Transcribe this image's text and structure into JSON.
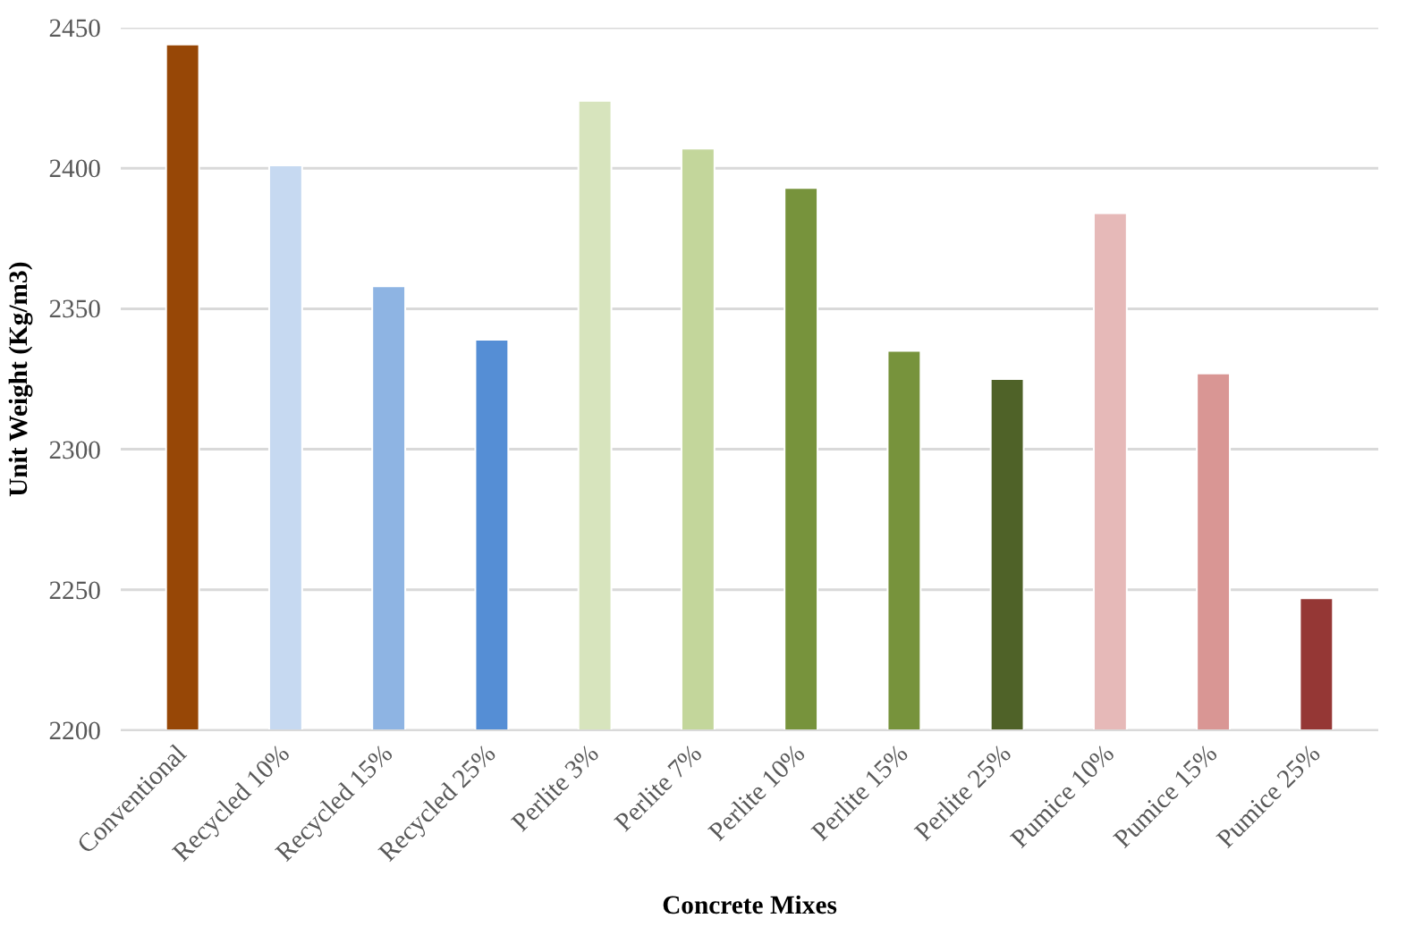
{
  "chart_data": {
    "type": "bar",
    "xlabel": "Concrete Mixes",
    "ylabel": "Unit Weight (Kg/m3)",
    "categories": [
      "Conventional",
      "Recycled 10%",
      "Recycled 15%",
      "Recycled 25%",
      "Perlite 3%",
      "Perlite 7%",
      "Perlite 10%",
      "Perlite 15%",
      "Perlite 25%",
      "Pumice 10%",
      "Pumice 15%",
      "Pumice 25%"
    ],
    "values": [
      2444,
      2401,
      2358,
      2339,
      2424,
      2407,
      2393,
      2335,
      2325,
      2384,
      2327,
      2247
    ],
    "colors": [
      "#974706",
      "#c6d9f1",
      "#8eb4e3",
      "#558ed5",
      "#d7e4bd",
      "#c3d69b",
      "#77933c",
      "#77933c",
      "#4f6228",
      "#e6b9b8",
      "#d99694",
      "#953735"
    ],
    "ylim": [
      2200,
      2450
    ],
    "yticks": [
      2200,
      2250,
      2300,
      2350,
      2400,
      2450
    ],
    "grid": "y"
  }
}
